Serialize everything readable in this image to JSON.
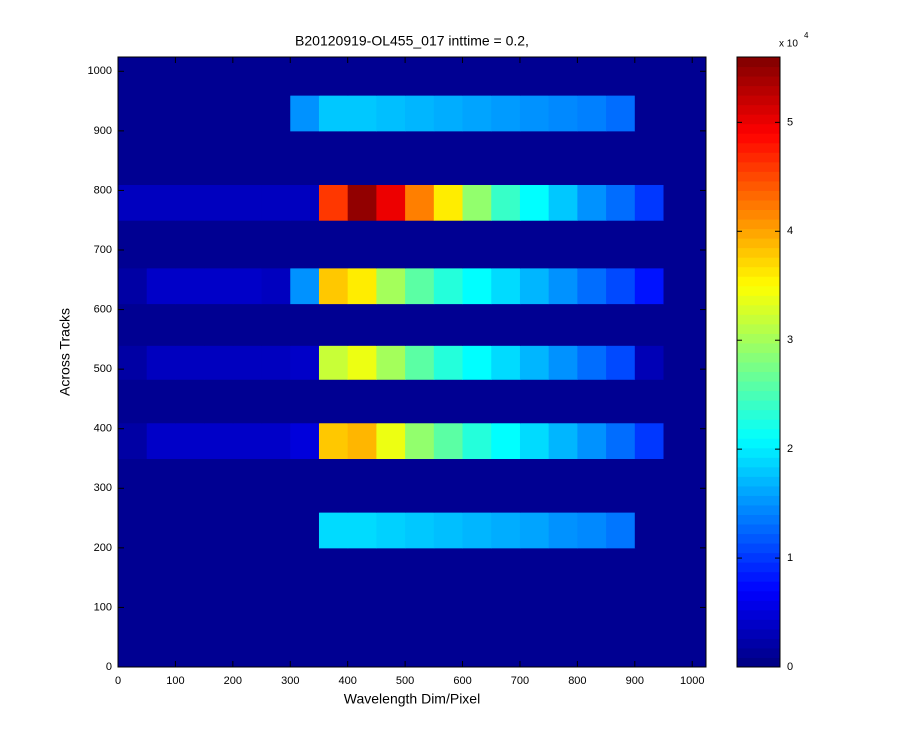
{
  "chart_data": {
    "type": "heatmap",
    "title": "B20120919-OL455_017 inttime = 0.2,",
    "x_label": "Wavelength Dim/Pixel",
    "y_label": "Across Tracks",
    "xlim": [
      0,
      1024
    ],
    "ylim": [
      0,
      1024
    ],
    "xticks": [
      0,
      100,
      200,
      300,
      400,
      500,
      600,
      700,
      800,
      900,
      1000
    ],
    "yticks": [
      0,
      100,
      200,
      300,
      400,
      500,
      600,
      700,
      800,
      900,
      1000
    ],
    "xbins": [
      0,
      50,
      100,
      150,
      200,
      250,
      300,
      350,
      400,
      450,
      500,
      550,
      600,
      650,
      700,
      750,
      800,
      850,
      900,
      950,
      1024
    ],
    "ybins": [
      0,
      200,
      260,
      350,
      410,
      483,
      540,
      610,
      670,
      750,
      810,
      900,
      960,
      1024
    ],
    "values": [
      [
        0.1,
        0.1,
        0.1,
        0.1,
        0.1,
        0.1,
        0.1,
        0.1,
        0.1,
        0.1,
        0.1,
        0.1,
        0.1,
        0.1,
        0.1,
        0.1,
        0.1,
        0.1,
        0.1,
        0.1
      ],
      [
        0.1,
        0.1,
        0.1,
        0.1,
        0.1,
        0.1,
        0.1,
        1.9,
        1.9,
        1.85,
        1.8,
        1.75,
        1.7,
        1.65,
        1.6,
        1.5,
        1.45,
        1.35,
        0.1,
        0.1
      ],
      [
        0.1,
        0.1,
        0.1,
        0.1,
        0.1,
        0.1,
        0.1,
        0.1,
        0.1,
        0.1,
        0.1,
        0.1,
        0.1,
        0.1,
        0.1,
        0.1,
        0.1,
        0.1,
        0.1,
        0.1
      ],
      [
        0.2,
        0.4,
        0.4,
        0.4,
        0.4,
        0.4,
        0.5,
        3.8,
        3.9,
        3.4,
        2.9,
        2.6,
        2.3,
        2.1,
        1.9,
        1.7,
        1.5,
        1.3,
        1.0,
        0.1
      ],
      [
        0.1,
        0.1,
        0.1,
        0.1,
        0.1,
        0.1,
        0.1,
        0.1,
        0.1,
        0.1,
        0.1,
        0.1,
        0.1,
        0.1,
        0.1,
        0.1,
        0.1,
        0.1,
        0.1,
        0.1
      ],
      [
        0.2,
        0.35,
        0.35,
        0.35,
        0.35,
        0.35,
        0.4,
        3.2,
        3.4,
        3.0,
        2.6,
        2.3,
        2.1,
        1.9,
        1.7,
        1.5,
        1.3,
        1.1,
        0.3,
        0.1
      ],
      [
        0.1,
        0.1,
        0.1,
        0.1,
        0.1,
        0.1,
        0.1,
        0.1,
        0.1,
        0.1,
        0.1,
        0.1,
        0.1,
        0.1,
        0.1,
        0.1,
        0.1,
        0.1,
        0.1,
        0.1
      ],
      [
        0.2,
        0.4,
        0.4,
        0.4,
        0.4,
        0.35,
        1.5,
        3.8,
        3.6,
        3.0,
        2.6,
        2.3,
        2.1,
        1.9,
        1.7,
        1.5,
        1.3,
        1.1,
        0.8,
        0.1
      ],
      [
        0.1,
        0.1,
        0.1,
        0.1,
        0.1,
        0.1,
        0.1,
        0.1,
        0.1,
        0.1,
        0.1,
        0.1,
        0.1,
        0.1,
        0.1,
        0.1,
        0.1,
        0.1,
        0.1,
        0.1
      ],
      [
        0.35,
        0.35,
        0.35,
        0.35,
        0.35,
        0.35,
        0.35,
        4.6,
        5.5,
        5.0,
        4.2,
        3.6,
        2.9,
        2.4,
        2.1,
        1.8,
        1.5,
        1.3,
        1.0,
        0.1
      ],
      [
        0.1,
        0.1,
        0.1,
        0.1,
        0.1,
        0.1,
        0.1,
        0.1,
        0.1,
        0.1,
        0.1,
        0.1,
        0.1,
        0.1,
        0.1,
        0.1,
        0.1,
        0.1,
        0.1,
        0.1
      ],
      [
        0.1,
        0.1,
        0.1,
        0.1,
        0.1,
        0.1,
        1.5,
        1.8,
        1.8,
        1.75,
        1.7,
        1.65,
        1.6,
        1.55,
        1.5,
        1.45,
        1.4,
        1.3,
        0.1,
        0.1
      ],
      [
        0.1,
        0.1,
        0.1,
        0.1,
        0.1,
        0.1,
        0.1,
        0.1,
        0.1,
        0.1,
        0.1,
        0.1,
        0.1,
        0.1,
        0.1,
        0.1,
        0.1,
        0.1,
        0.1,
        0.1
      ]
    ],
    "colormap": "jet",
    "clim": [
      0,
      5.6
    ],
    "cticks": [
      0,
      1,
      2,
      3,
      4,
      5
    ],
    "colorbar_exponent": {
      "base": "x 10",
      "power": "4"
    }
  }
}
